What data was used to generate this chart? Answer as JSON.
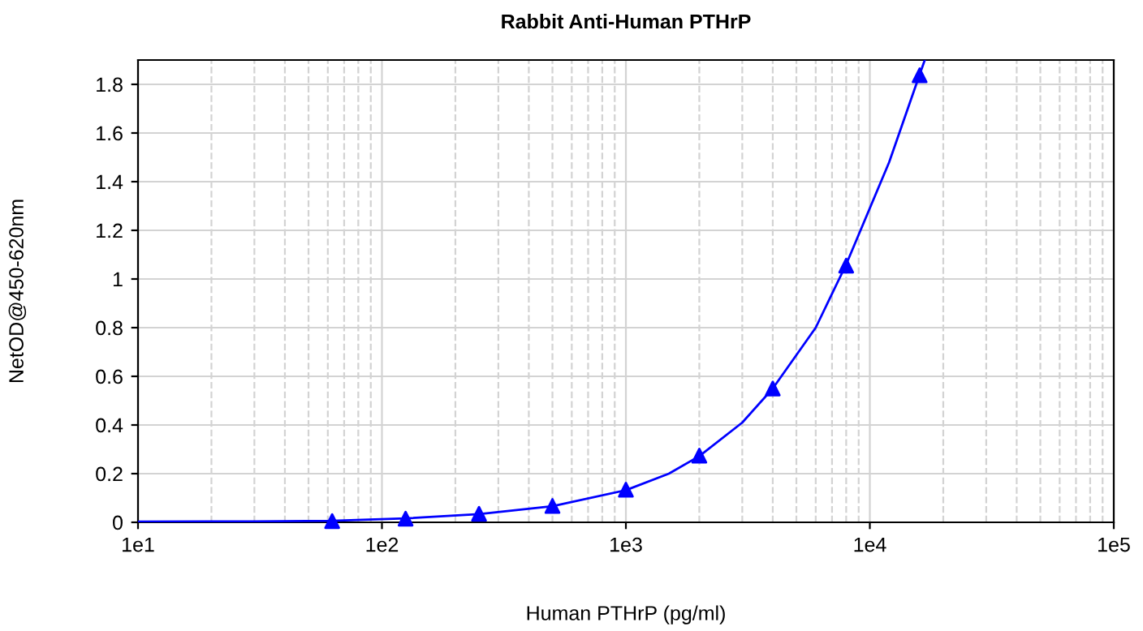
{
  "chart_data": {
    "type": "scatter",
    "title": "Rabbit Anti-Human PTHrP",
    "xlabel": "Human PTHrP (pg/ml)",
    "ylabel": "NetOD@450-620nm",
    "log": "x",
    "xlim": [
      10,
      100000
    ],
    "xticks": [
      {
        "value": 10,
        "label": "1e1"
      },
      {
        "value": 100,
        "label": "1e2"
      },
      {
        "value": 1000,
        "label": "1e3"
      },
      {
        "value": 10000,
        "label": "1e4"
      },
      {
        "value": 100000,
        "label": "1e5"
      }
    ],
    "ylim": [
      0,
      1.9
    ],
    "yticks": [
      0,
      0.2,
      0.4,
      0.6,
      0.8,
      1,
      1.2,
      1.4,
      1.6,
      1.8
    ],
    "grid": true,
    "series": [
      {
        "type": "line",
        "color": "#0000ff",
        "line_style": "solid",
        "marker": "none",
        "x": [
          10,
          30,
          62.5,
          125,
          250,
          500,
          1000,
          1500,
          2000,
          3000,
          4000,
          6000,
          8000,
          12000,
          16000,
          16800
        ],
        "values": [
          0.003,
          0.004,
          0.006,
          0.016,
          0.034,
          0.066,
          0.132,
          0.2,
          0.272,
          0.41,
          0.55,
          0.8,
          1.06,
          1.48,
          1.84,
          1.9
        ]
      },
      {
        "color": "#0000ff",
        "marker": "triangle",
        "x": [
          62.5,
          125,
          250,
          500,
          1000,
          2000,
          4000,
          8000,
          16000
        ],
        "values": [
          0.005,
          0.015,
          0.035,
          0.067,
          0.134,
          0.274,
          0.55,
          1.055,
          1.837
        ]
      }
    ]
  }
}
